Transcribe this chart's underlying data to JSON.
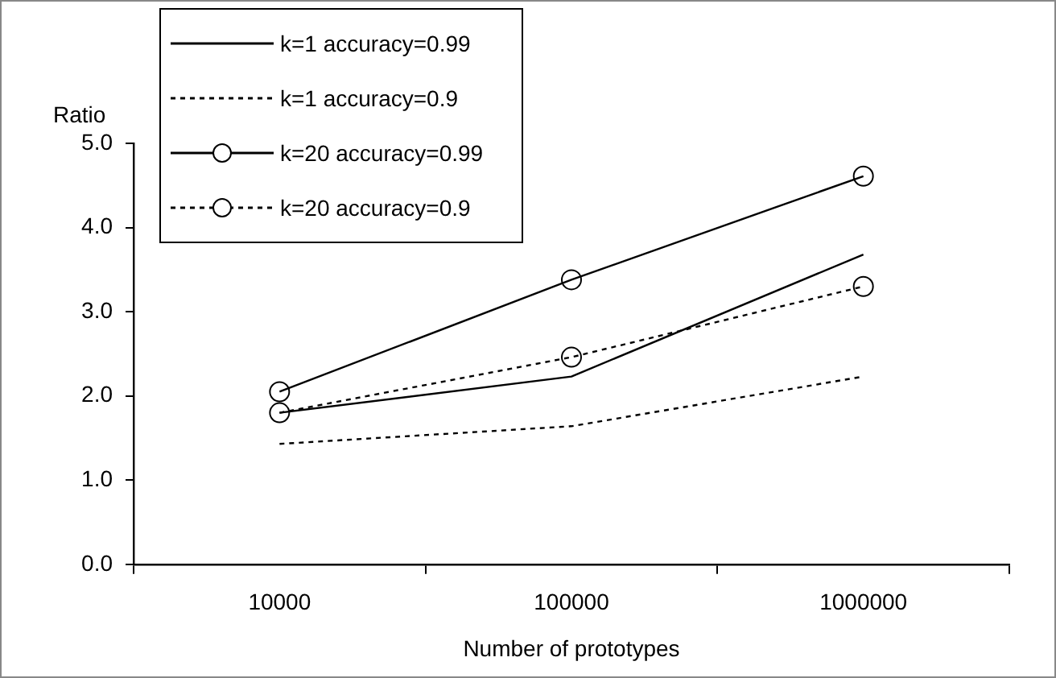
{
  "chart_data": {
    "type": "line",
    "xlabel": "Number of prototypes",
    "ylabel": "Ratio",
    "categories": [
      "10000",
      "100000",
      "1000000"
    ],
    "ylim": [
      0,
      5
    ],
    "yticks": [
      {
        "value": 0,
        "label": "0.0"
      },
      {
        "value": 1,
        "label": "1.0"
      },
      {
        "value": 2,
        "label": "2.0"
      },
      {
        "value": 3,
        "label": "3.0"
      },
      {
        "value": 4,
        "label": "4.0"
      },
      {
        "value": 5,
        "label": "5.0"
      }
    ],
    "grid": false,
    "legend": "top left",
    "series": [
      {
        "name": "k=1 accuracy=0.99",
        "color": "#000000",
        "values": [
          1.8,
          2.23,
          3.68
        ],
        "line_style": "solid",
        "marker": "none"
      },
      {
        "name": "k=1 accuracy=0.9",
        "color": "#000000",
        "values": [
          1.43,
          1.64,
          2.23
        ],
        "line_style": "dotted",
        "marker": "none"
      },
      {
        "name": "k=20 accuracy=0.99",
        "color": "#000000",
        "values": [
          2.05,
          3.38,
          4.61
        ],
        "line_style": "solid",
        "marker": "circle"
      },
      {
        "name": "k=20 accuracy=0.9",
        "color": "#000000",
        "values": [
          1.8,
          2.46,
          3.3
        ],
        "line_style": "dotted",
        "marker": "circle"
      }
    ]
  }
}
